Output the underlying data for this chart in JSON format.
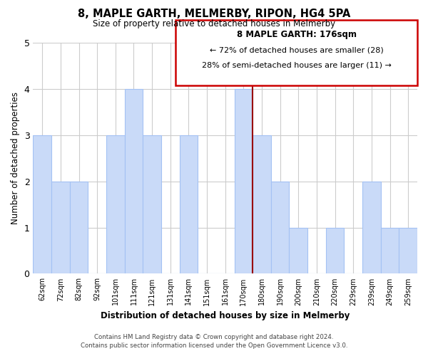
{
  "title": "8, MAPLE GARTH, MELMERBY, RIPON, HG4 5PA",
  "subtitle": "Size of property relative to detached houses in Melmerby",
  "xlabel": "Distribution of detached houses by size in Melmerby",
  "ylabel": "Number of detached properties",
  "bar_labels": [
    "62sqm",
    "72sqm",
    "82sqm",
    "92sqm",
    "101sqm",
    "111sqm",
    "121sqm",
    "131sqm",
    "141sqm",
    "151sqm",
    "161sqm",
    "170sqm",
    "180sqm",
    "190sqm",
    "200sqm",
    "210sqm",
    "220sqm",
    "229sqm",
    "239sqm",
    "249sqm",
    "259sqm"
  ],
  "bar_values": [
    3,
    2,
    2,
    0,
    3,
    4,
    3,
    0,
    3,
    0,
    0,
    4,
    3,
    2,
    1,
    0,
    1,
    0,
    2,
    1,
    1
  ],
  "bar_color": "#c9daf8",
  "bar_edge_color": "#a4c2f4",
  "highlight_index": 11,
  "highlight_line_color": "#990000",
  "annotation_title": "8 MAPLE GARTH: 176sqm",
  "annotation_line1": "← 72% of detached houses are smaller (28)",
  "annotation_line2": "28% of semi-detached houses are larger (11) →",
  "annotation_box_edge": "#cc0000",
  "footer_line1": "Contains HM Land Registry data © Crown copyright and database right 2024.",
  "footer_line2": "Contains public sector information licensed under the Open Government Licence v3.0.",
  "ylim": [
    0,
    5
  ],
  "yticks": [
    0,
    1,
    2,
    3,
    4,
    5
  ],
  "background_color": "#ffffff",
  "grid_color": "#cccccc"
}
